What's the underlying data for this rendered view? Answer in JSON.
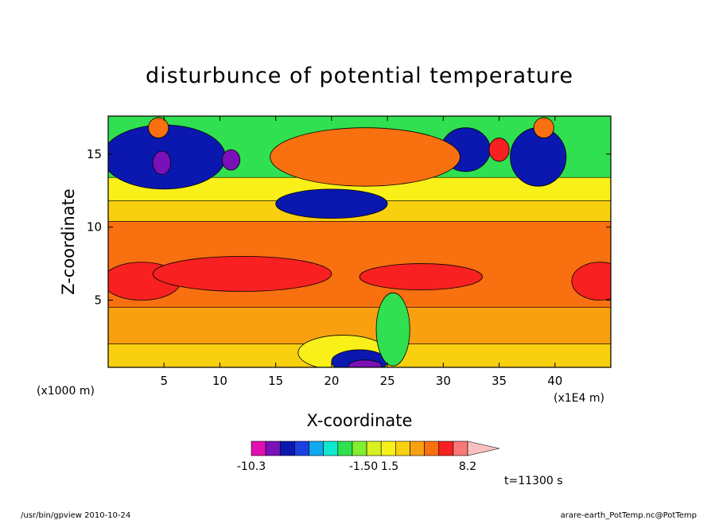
{
  "chart_data": {
    "type": "heatmap",
    "title": "disturbunce of potential temperature",
    "xlabel": "X-coordinate",
    "ylabel": "Z-coordinate",
    "x_unit_left": "(x1000 m)",
    "x_unit_right": "(x1E4 m)",
    "xlim": [
      0,
      45
    ],
    "ylim": [
      0.4,
      17.6
    ],
    "x_ticks": [
      5,
      10,
      15,
      20,
      25,
      30,
      35,
      40
    ],
    "x_tick_labels": [
      "5",
      "10",
      "15",
      "20",
      "25",
      "30",
      "35",
      "40"
    ],
    "y_ticks": [
      5,
      10,
      15
    ],
    "y_tick_labels": [
      "5",
      "10",
      "15"
    ],
    "time_label": "t=11300 s",
    "colorbar": {
      "labels": [
        {
          "at": -10.3,
          "text": "-10.3"
        },
        {
          "at": -1.5,
          "text": "-1.50"
        },
        {
          "at": 1.5,
          "text": "1.5"
        },
        {
          "at": 8.2,
          "text": "8.2"
        }
      ],
      "colors": [
        "#e010b0",
        "#7a10b8",
        "#0a18b0",
        "#1a40e0",
        "#10a8f0",
        "#10e8d0",
        "#30e050",
        "#80f030",
        "#d8f020",
        "#f8f018",
        "#f8d010",
        "#f8a010",
        "#f87010",
        "#f82020",
        "#f87878",
        "#f8c0c0"
      ]
    },
    "bands": [
      {
        "name": "layer-0-2",
        "z0": 0.4,
        "z1": 2.0,
        "color": "#f8d010"
      },
      {
        "name": "layer-2-4",
        "z0": 2.0,
        "z1": 4.5,
        "color": "#f8a010"
      },
      {
        "name": "layer-4-10",
        "z0": 4.5,
        "z1": 10.4,
        "color": "#f87010"
      },
      {
        "name": "layer-10-11",
        "z0": 10.4,
        "z1": 11.8,
        "color": "#f8d010"
      },
      {
        "name": "layer-11-13",
        "z0": 11.8,
        "z1": 13.4,
        "color": "#f8f018"
      },
      {
        "name": "layer-13-17",
        "z0": 13.4,
        "z1": 17.6,
        "color": "#30e050"
      }
    ],
    "blobs": [
      {
        "name": "warm-core-west",
        "cx": 3.0,
        "cz": 6.3,
        "rx": 3.5,
        "rz": 1.3,
        "color": "#f82020"
      },
      {
        "name": "warm-core-center",
        "cx": 12.0,
        "cz": 6.8,
        "rx": 8.0,
        "rz": 1.2,
        "color": "#f82020"
      },
      {
        "name": "warm-core-east",
        "cx": 28.0,
        "cz": 6.6,
        "rx": 5.5,
        "rz": 0.9,
        "color": "#f82020"
      },
      {
        "name": "warm-core-far-east",
        "cx": 44.0,
        "cz": 6.3,
        "rx": 2.5,
        "rz": 1.3,
        "color": "#f82020"
      },
      {
        "name": "cold-pool-west",
        "cx": 5.0,
        "cz": 14.8,
        "rx": 5.5,
        "rz": 2.2,
        "color": "#0a18b0"
      },
      {
        "name": "cold-pool-center",
        "cx": 20.0,
        "cz": 11.6,
        "rx": 5.0,
        "rz": 1.0,
        "color": "#0a18b0"
      },
      {
        "name": "cold-pool-east",
        "cx": 32.0,
        "cz": 15.3,
        "rx": 2.2,
        "rz": 1.5,
        "color": "#0a18b0"
      },
      {
        "name": "cold-pool-far-east",
        "cx": 38.5,
        "cz": 14.8,
        "rx": 2.5,
        "rz": 2.0,
        "color": "#0a18b0"
      },
      {
        "name": "cold-spot-1",
        "cx": 4.8,
        "cz": 14.4,
        "rx": 0.8,
        "rz": 0.8,
        "color": "#7a10b8"
      },
      {
        "name": "cold-spot-2",
        "cx": 11.0,
        "cz": 14.6,
        "rx": 0.8,
        "rz": 0.7,
        "color": "#7a10b8"
      },
      {
        "name": "anvil-top",
        "cx": 23.0,
        "cz": 14.8,
        "rx": 8.5,
        "rz": 2.0,
        "color": "#f87010"
      },
      {
        "name": "warm-eye-1",
        "cx": 4.5,
        "cz": 16.8,
        "rx": 0.9,
        "rz": 0.7,
        "color": "#f87010"
      },
      {
        "name": "warm-eye-2",
        "cx": 39.0,
        "cz": 16.8,
        "rx": 0.9,
        "rz": 0.7,
        "color": "#f87010"
      },
      {
        "name": "warm-spot-east",
        "cx": 35.0,
        "cz": 15.3,
        "rx": 0.9,
        "rz": 0.8,
        "color": "#f82020"
      },
      {
        "name": "surface-cold-1",
        "cx": 21.0,
        "cz": 1.4,
        "rx": 4.0,
        "rz": 1.2,
        "color": "#f8f018"
      },
      {
        "name": "surface-cold-2",
        "cx": 22.5,
        "cz": 0.8,
        "rx": 2.5,
        "rz": 0.8,
        "color": "#0a18b0"
      },
      {
        "name": "surface-cold-3",
        "cx": 23.0,
        "cz": 0.5,
        "rx": 1.5,
        "rz": 0.4,
        "color": "#7a10b8"
      },
      {
        "name": "gust-front",
        "cx": 25.5,
        "cz": 3.0,
        "rx": 1.5,
        "rz": 2.5,
        "color": "#30e050"
      }
    ]
  },
  "footer": {
    "left": "/usr/bin/gpview  2010-10-24",
    "right": "arare-earth_PotTemp.nc@PotTemp"
  }
}
